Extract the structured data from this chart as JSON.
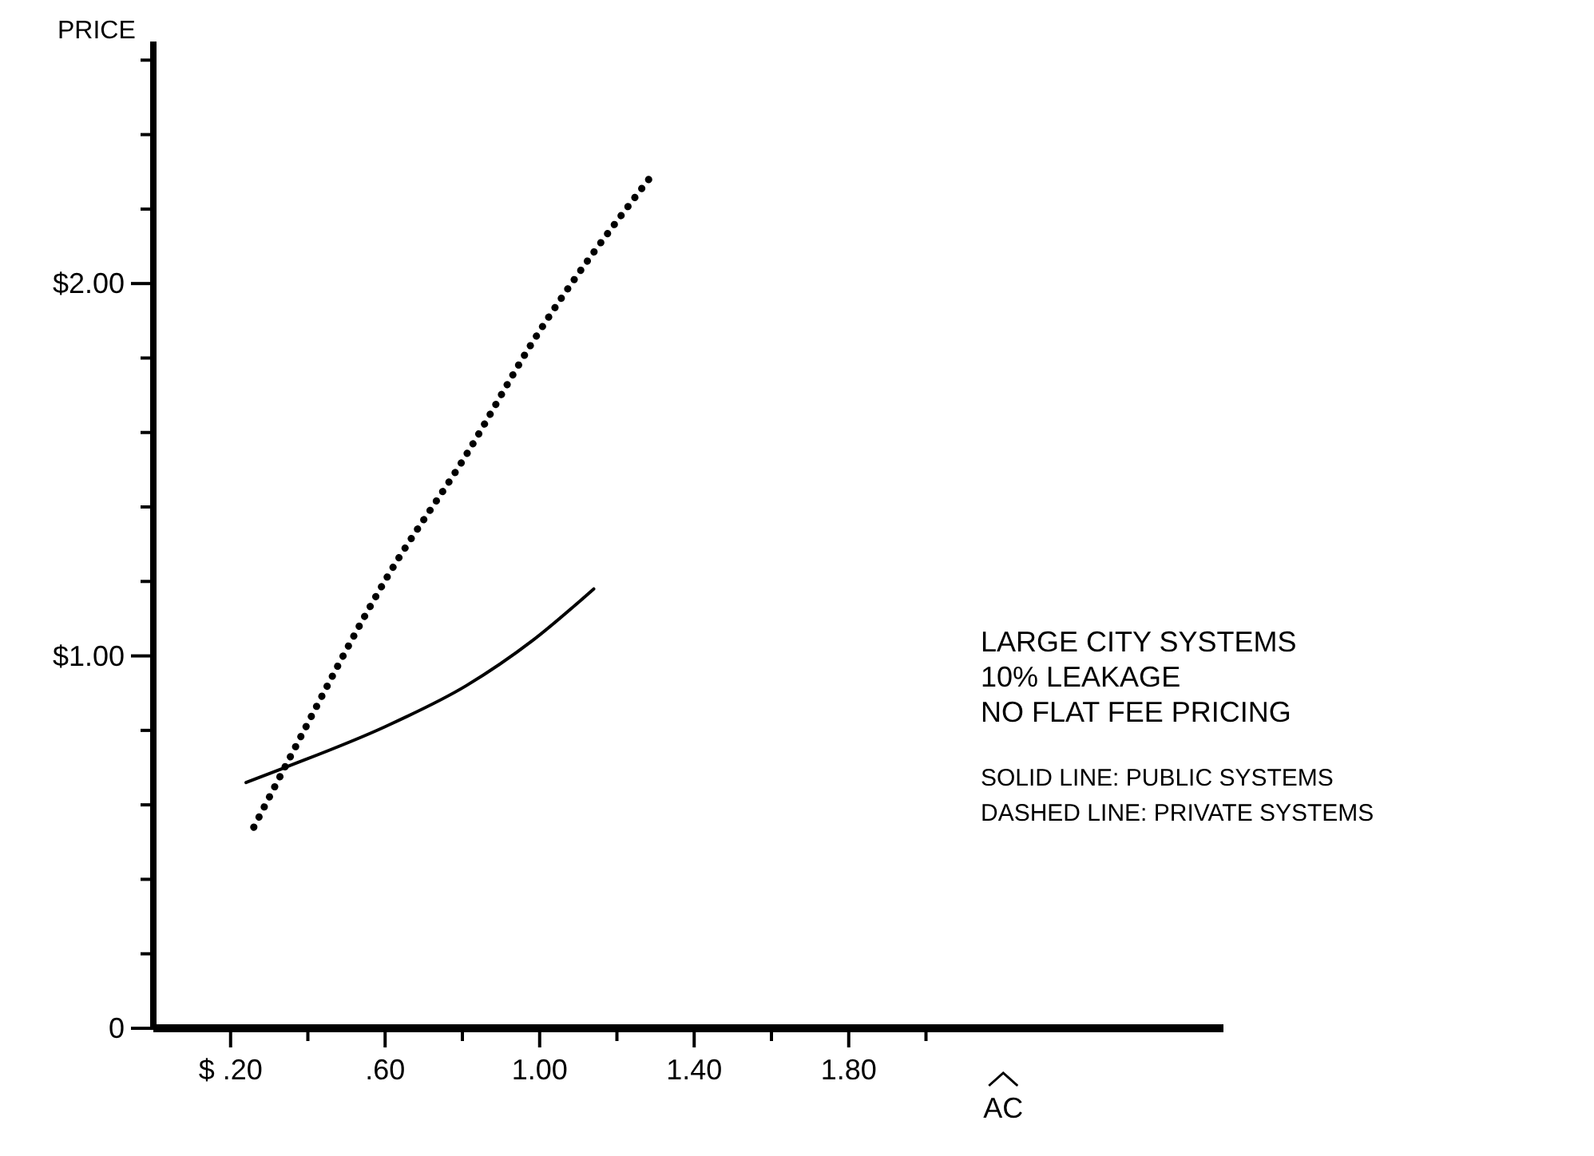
{
  "chart_data": {
    "type": "line",
    "ylabel": "PRICE",
    "xlabel": "AC",
    "xlim": [
      0,
      2.77
    ],
    "ylim": [
      0,
      2.65
    ],
    "xticks": [
      {
        "value": 0.2,
        "label": "$ .20"
      },
      {
        "value": 0.4,
        "label": null
      },
      {
        "value": 0.6,
        "label": ".60"
      },
      {
        "value": 0.8,
        "label": null
      },
      {
        "value": 1.0,
        "label": "1.00"
      },
      {
        "value": 1.2,
        "label": null
      },
      {
        "value": 1.4,
        "label": "1.40"
      },
      {
        "value": 1.6,
        "label": null
      },
      {
        "value": 1.8,
        "label": "1.80"
      },
      {
        "value": 2.0,
        "label": null
      }
    ],
    "yticks": [
      0,
      {
        "value": 0.2,
        "label": null
      },
      {
        "value": 0.4,
        "label": null
      },
      {
        "value": 0.6,
        "label": null
      },
      {
        "value": 0.8,
        "label": null
      },
      {
        "value": 1.0,
        "label": "$1.00"
      },
      {
        "value": 1.2,
        "label": null
      },
      {
        "value": 1.4,
        "label": null
      },
      {
        "value": 1.6,
        "label": null
      },
      {
        "value": 1.8,
        "label": null
      },
      {
        "value": 2.0,
        "label": "$2.00"
      },
      {
        "value": 2.2,
        "label": null
      },
      {
        "value": 2.4,
        "label": null
      },
      {
        "value": 2.6,
        "label": null
      }
    ],
    "series": [
      {
        "color": "#000000",
        "line_style": "solid",
        "x": [
          0.24,
          0.34,
          0.6,
          0.81,
          0.98,
          1.14
        ],
        "values": [
          0.66,
          0.7,
          0.81,
          0.92,
          1.04,
          1.18
        ]
      },
      {
        "color": "#000000",
        "line_style": "dotted",
        "x": [
          0.26,
          0.34,
          0.61,
          0.81,
          0.98,
          1.29
        ],
        "values": [
          0.54,
          0.7,
          1.22,
          1.54,
          1.84,
          2.29
        ]
      }
    ],
    "marker": "none",
    "annotations": [
      "LARGE CITY SYSTEMS",
      "10% LEAKAGE",
      "NO FLAT FEE PRICING",
      "SOLID LINE: PUBLIC SYSTEMS",
      "DASHED LINE: PRIVATE SYSTEMS"
    ]
  }
}
